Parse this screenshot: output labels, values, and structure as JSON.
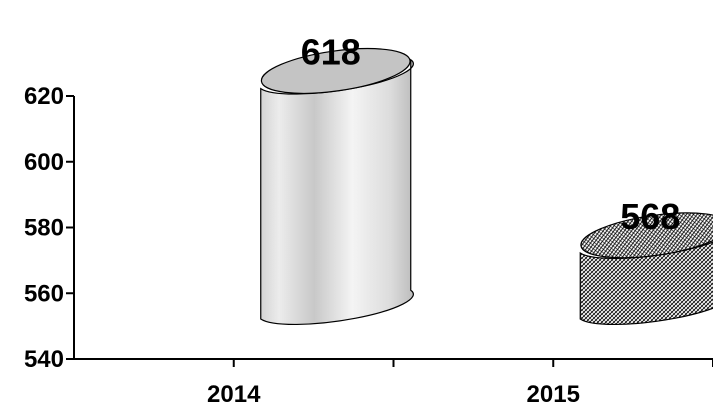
{
  "chart_data": {
    "type": "bar",
    "style": "3d-cylinder",
    "categories": [
      "2014",
      "2015"
    ],
    "values": [
      618,
      568
    ],
    "data_labels": [
      "618",
      "568"
    ],
    "y_ticks": [
      "540",
      "560",
      "580",
      "600",
      "620"
    ],
    "ylim": [
      540,
      620
    ],
    "grid": false,
    "legend": "none",
    "series_fills": [
      "light-gray-gradient",
      "dark-crosshatch"
    ]
  }
}
